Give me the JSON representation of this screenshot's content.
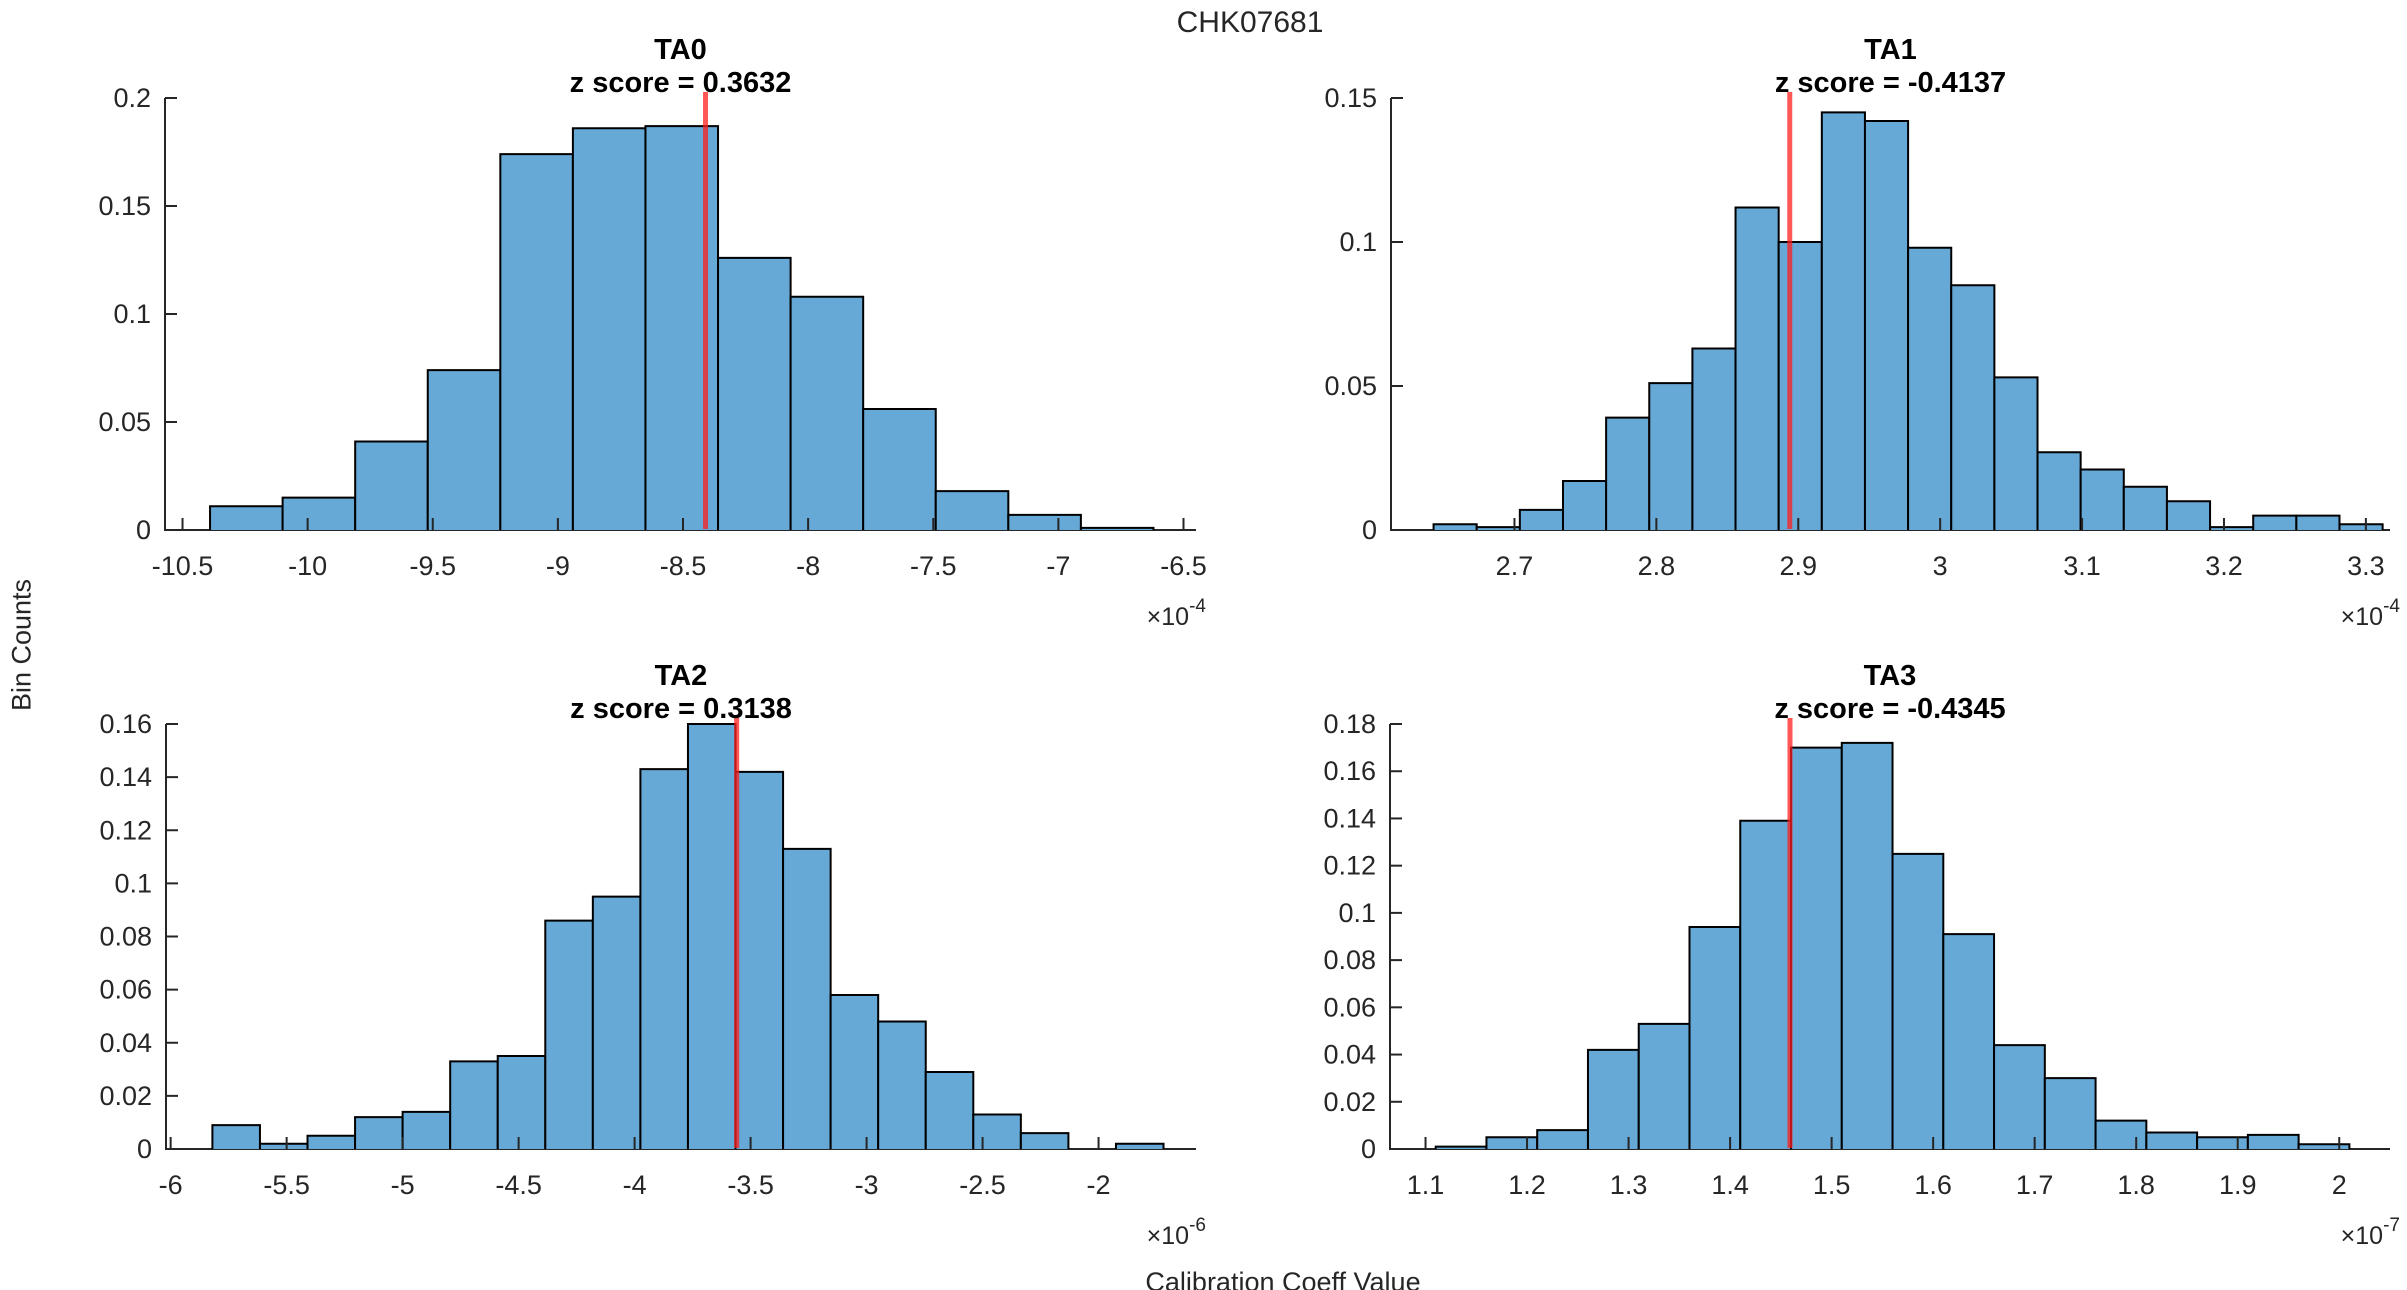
{
  "figure": {
    "title": "CHK07681",
    "ylabel": "Bin Counts",
    "xlabel": "Calibration Coeff Value",
    "background": "#ffffff",
    "colors": {
      "bar_fill": "#66a8d6",
      "bar_edge": "#000000",
      "red_line": "#ff1e1e",
      "axis": "#262626",
      "tick_text": "#262626",
      "title_text": "#000000"
    }
  },
  "chart_data": [
    {
      "type": "bar",
      "name": "TA0",
      "title": "TA0",
      "subtitle": "z score = 0.3632",
      "z_score": 0.3632,
      "x_multiplier": "×10",
      "x_exponent": "-4",
      "xlim": [
        -10.57,
        -6.45
      ],
      "ylim": [
        0,
        0.2
      ],
      "xtick_values": [
        -10.5,
        -10,
        -9.5,
        -9,
        -8.5,
        -8,
        -7.5,
        -7,
        -6.5
      ],
      "xtick_labels": [
        "-10.5",
        "-10",
        "-9.5",
        "-9",
        "-8.5",
        "-8",
        "-7.5",
        "-7",
        "-6.5"
      ],
      "ytick_values": [
        0,
        0.05,
        0.1,
        0.15,
        0.2
      ],
      "ytick_labels": [
        "0",
        "0.05",
        "0.1",
        "0.15",
        "0.2"
      ],
      "bin_start": -10.39,
      "bin_width": 0.29,
      "heights": [
        0.011,
        0.015,
        0.041,
        0.074,
        0.174,
        0.186,
        0.187,
        0.126,
        0.108,
        0.056,
        0.018,
        0.007,
        0.001
      ],
      "red_line_x": -8.41
    },
    {
      "type": "bar",
      "name": "TA1",
      "title": "TA1",
      "subtitle": "z score = -0.4137",
      "z_score": -0.4137,
      "x_multiplier": "×10",
      "x_exponent": "-4",
      "xlim": [
        2.613,
        3.317
      ],
      "ylim": [
        0,
        0.15
      ],
      "xtick_values": [
        2.7,
        2.8,
        2.9,
        3,
        3.1,
        3.2,
        3.3
      ],
      "xtick_labels": [
        "2.7",
        "2.8",
        "2.9",
        "3",
        "3.1",
        "3.2",
        "3.3"
      ],
      "ytick_values": [
        0,
        0.05,
        0.1,
        0.15
      ],
      "ytick_labels": [
        "0",
        "0.05",
        "0.1",
        "0.15"
      ],
      "bin_start": 2.643,
      "bin_width": 0.0304,
      "heights": [
        0.002,
        0.001,
        0.007,
        0.017,
        0.039,
        0.051,
        0.063,
        0.112,
        0.1,
        0.145,
        0.142,
        0.098,
        0.085,
        0.053,
        0.027,
        0.021,
        0.015,
        0.01,
        0.001,
        0.005,
        0.005,
        0.002
      ],
      "red_line_x": 2.894
    },
    {
      "type": "bar",
      "name": "TA2",
      "title": "TA2",
      "subtitle": "z score = 0.3138",
      "z_score": 0.3138,
      "x_multiplier": "×10",
      "x_exponent": "-6",
      "xlim": [
        -6.02,
        -1.58
      ],
      "ylim": [
        0,
        0.16
      ],
      "xtick_values": [
        -6,
        -5.5,
        -5,
        -4.5,
        -4,
        -3.5,
        -3,
        -2.5,
        -2
      ],
      "xtick_labels": [
        "-6",
        "-5.5",
        "-5",
        "-4.5",
        "-4",
        "-3.5",
        "-3",
        "-2.5",
        "-2"
      ],
      "ytick_values": [
        0,
        0.02,
        0.04,
        0.06,
        0.08,
        0.1,
        0.12,
        0.14,
        0.16
      ],
      "ytick_labels": [
        "0",
        "0.02",
        "0.04",
        "0.06",
        "0.08",
        "0.1",
        "0.12",
        "0.14",
        "0.16"
      ],
      "bin_start": -5.82,
      "bin_width": 0.205,
      "heights": [
        0.009,
        0.002,
        0.005,
        0.012,
        0.014,
        0.033,
        0.035,
        0.086,
        0.095,
        0.143,
        0.16,
        0.142,
        0.113,
        0.058,
        0.048,
        0.029,
        0.013,
        0.006,
        0,
        0.002
      ],
      "red_line_x": -3.56
    },
    {
      "type": "bar",
      "name": "TA3",
      "title": "TA3",
      "subtitle": "z score = -0.4345",
      "z_score": -0.4345,
      "x_multiplier": "×10",
      "x_exponent": "-7",
      "xlim": [
        1.065,
        2.05
      ],
      "ylim": [
        0,
        0.18
      ],
      "xtick_values": [
        1.1,
        1.2,
        1.3,
        1.4,
        1.5,
        1.6,
        1.7,
        1.8,
        1.9,
        2
      ],
      "xtick_labels": [
        "1.1",
        "1.2",
        "1.3",
        "1.4",
        "1.5",
        "1.6",
        "1.7",
        "1.8",
        "1.9",
        "2"
      ],
      "ytick_values": [
        0,
        0.02,
        0.04,
        0.06,
        0.08,
        0.1,
        0.12,
        0.14,
        0.16,
        0.18
      ],
      "ytick_labels": [
        "0",
        "0.02",
        "0.04",
        "0.06",
        "0.08",
        "0.1",
        "0.12",
        "0.14",
        "0.16",
        "0.18"
      ],
      "bin_start": 1.11,
      "bin_width": 0.05,
      "heights": [
        0.001,
        0.005,
        0.008,
        0.042,
        0.053,
        0.094,
        0.139,
        0.17,
        0.172,
        0.125,
        0.091,
        0.044,
        0.03,
        0.012,
        0.007,
        0.005,
        0.006,
        0.002
      ],
      "red_line_x": 1.459
    }
  ]
}
